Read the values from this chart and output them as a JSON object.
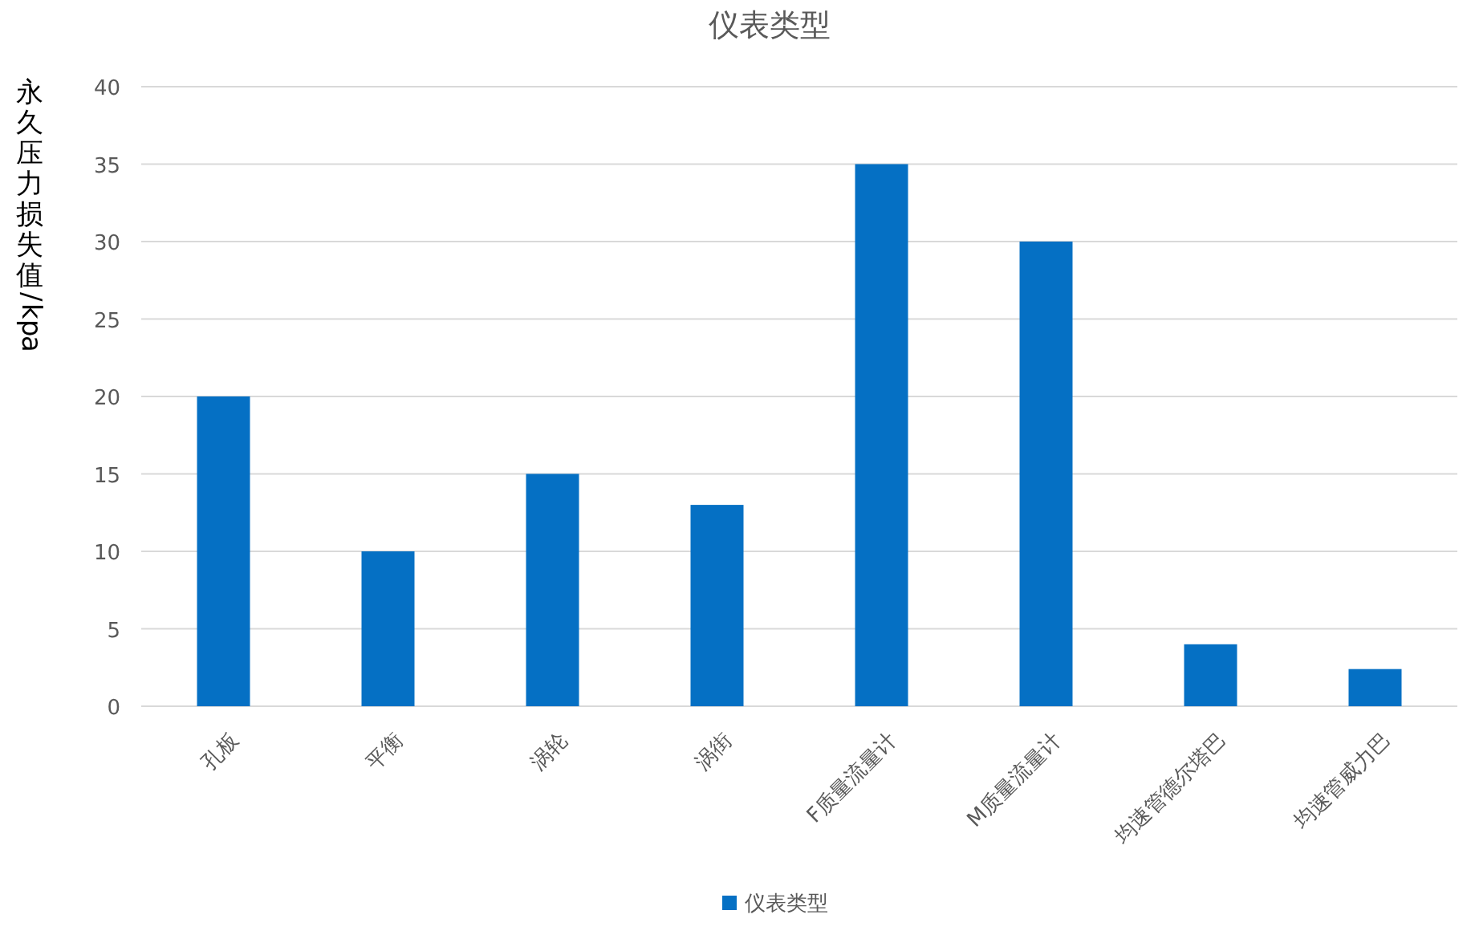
{
  "chart_data": {
    "type": "bar",
    "title": "仪表类型",
    "ylabel": "永久压力损失值/kpa",
    "categories": [
      "孔板",
      "平衡",
      "涡轮",
      "涡街",
      "F质量流量计",
      "M质量流量计",
      "均速管德尔塔巴",
      "均速管威力巴"
    ],
    "series": [
      {
        "name": "仪表类型",
        "color": "#0570c4",
        "values": [
          20,
          10,
          15,
          13,
          35,
          30,
          4,
          2.4
        ]
      }
    ],
    "ylim": [
      0,
      40
    ],
    "yticks": [
      0,
      5,
      10,
      15,
      20,
      25,
      30,
      35,
      40
    ],
    "grid": "y",
    "legend": "bottom"
  }
}
